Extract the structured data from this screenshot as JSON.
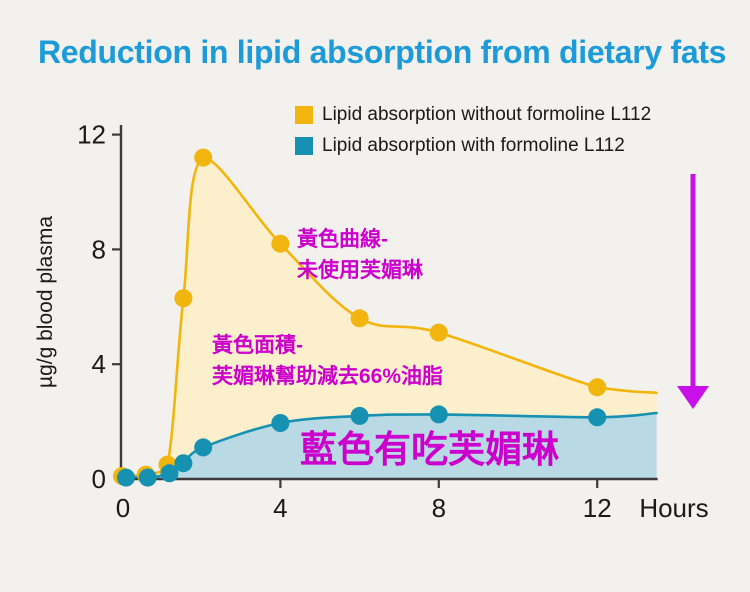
{
  "title": {
    "text": "Reduction in lipid absorption from dietary fats",
    "color": "#1C9BD8"
  },
  "chart_data": {
    "type": "area",
    "title": "Reduction in lipid absorption from dietary fats",
    "xlabel": "Hours",
    "ylabel": "µg/g blood plasma",
    "xlim": [
      0,
      13.5
    ],
    "ylim": [
      0,
      12
    ],
    "xticks": [
      0,
      4,
      8,
      12
    ],
    "yticks": [
      0,
      4,
      8,
      12
    ],
    "grid": false,
    "legend_position": "top-right",
    "series": [
      {
        "name": "Lipid absorption without formoline L112",
        "color": "#F2B50D",
        "fill_color": "#FCEFCB",
        "x": [
          0,
          0.6,
          1.15,
          1.55,
          2.05,
          4,
          6,
          8,
          12
        ],
        "values": [
          0.1,
          0.15,
          0.5,
          6.3,
          11.2,
          8.2,
          5.6,
          5.1,
          3.2
        ],
        "curve_end": [
          13.5,
          3.0
        ]
      },
      {
        "name": "Lipid absorption with formoline L112",
        "color": "#1691B1",
        "fill_color": "#B9D9E4",
        "x": [
          0.1,
          0.65,
          1.2,
          1.55,
          2.05,
          4,
          6,
          8,
          12
        ],
        "values": [
          0.05,
          0.05,
          0.2,
          0.55,
          1.1,
          1.95,
          2.2,
          2.25,
          2.15
        ],
        "curve_end": [
          13.5,
          2.3
        ]
      }
    ]
  },
  "annotations": {
    "yellow_curve": {
      "line1": "黃色曲線-",
      "line2": "未使用芙媚琳",
      "color": "#CC00CC"
    },
    "yellow_area": {
      "line1": "黃色面積-",
      "line2": "芙媚琳幫助減去66%油脂",
      "color": "#CC00CC"
    },
    "blue_area": {
      "text": "藍色有吃芙媚琳",
      "color": "#CC00CC"
    },
    "reduction_arrow": {
      "direction": "down",
      "color": "#C711E8"
    }
  },
  "colors": {
    "background": "#F2F1ED",
    "axis": "#3B3B3B",
    "tick_text": "#1A1A1A"
  }
}
